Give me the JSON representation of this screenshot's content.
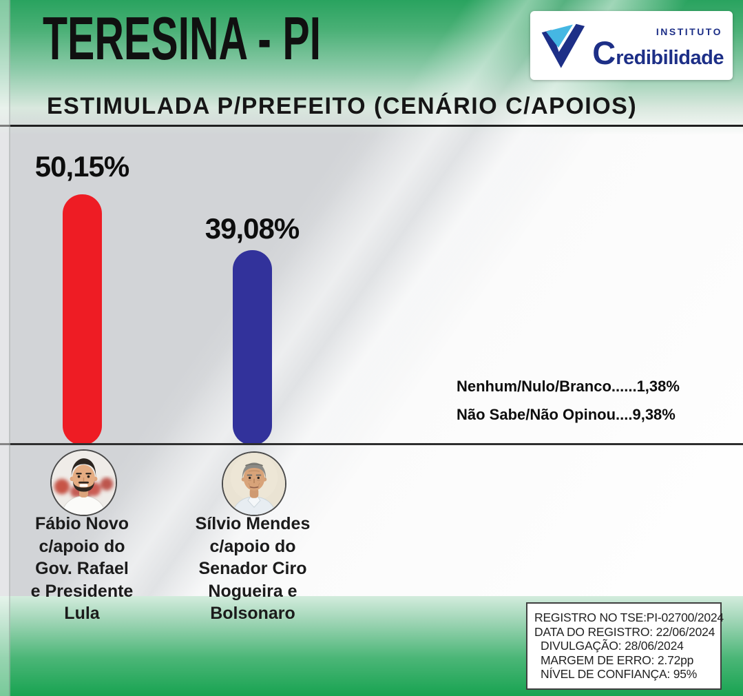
{
  "header": {
    "title": "TERESINA - PI",
    "subtitle": "ESTIMULADA P/PREFEITO (CENÁRIO C/APOIOS)",
    "logo": {
      "institute": "INSTITUTO",
      "brand_initial": "C",
      "brand_rest": "redibilidade",
      "icon": "check-v-icon",
      "navy": "#1d2f87",
      "lightblue": "#45b7e3"
    }
  },
  "chart_data": {
    "type": "bar",
    "title": "ESTIMULADA P/PREFEITO (CENÁRIO C/APOIOS)",
    "unit": "%",
    "categories": [
      "Fábio Novo c/apoio do Gov. Rafael e Presidente Lula",
      "Sílvio Mendes c/apoio do Senador Ciro Nogueira e Bolsonaro"
    ],
    "values": [
      50.15,
      39.08
    ],
    "value_labels": [
      "50,15%",
      "39,08%"
    ],
    "bar_colors": [
      "#ee1c24",
      "#32329b"
    ],
    "ylim": [
      0,
      55
    ],
    "grid": false,
    "legend": "none",
    "others": [
      {
        "label": "Nenhum/Nulo/Branco......1,38%",
        "value": 1.38
      },
      {
        "label": "Não Sabe/Não Opinou....9,38%",
        "value": 9.38
      }
    ]
  },
  "candidates": [
    {
      "lines": [
        "Fábio Novo",
        "c/apoio do",
        "Gov. Rafael",
        "e Presidente",
        "Lula"
      ],
      "color": "#ee1c24"
    },
    {
      "lines": [
        "Sílvio Mendes",
        "c/apoio do",
        "Senador Ciro",
        "Nogueira e",
        "Bolsonaro"
      ],
      "color": "#32329b"
    }
  ],
  "footer": {
    "registration": {
      "lines": [
        "REGISTRO NO TSE:PI-02700/2024",
        "DATA DO REGISTRO: 22/06/2024",
        "DIVULGAÇÃO: 28/06/2024",
        "MARGEM DE ERRO: 2.72pp",
        "NÍVEL DE CONFIANÇA: 95%"
      ]
    }
  }
}
